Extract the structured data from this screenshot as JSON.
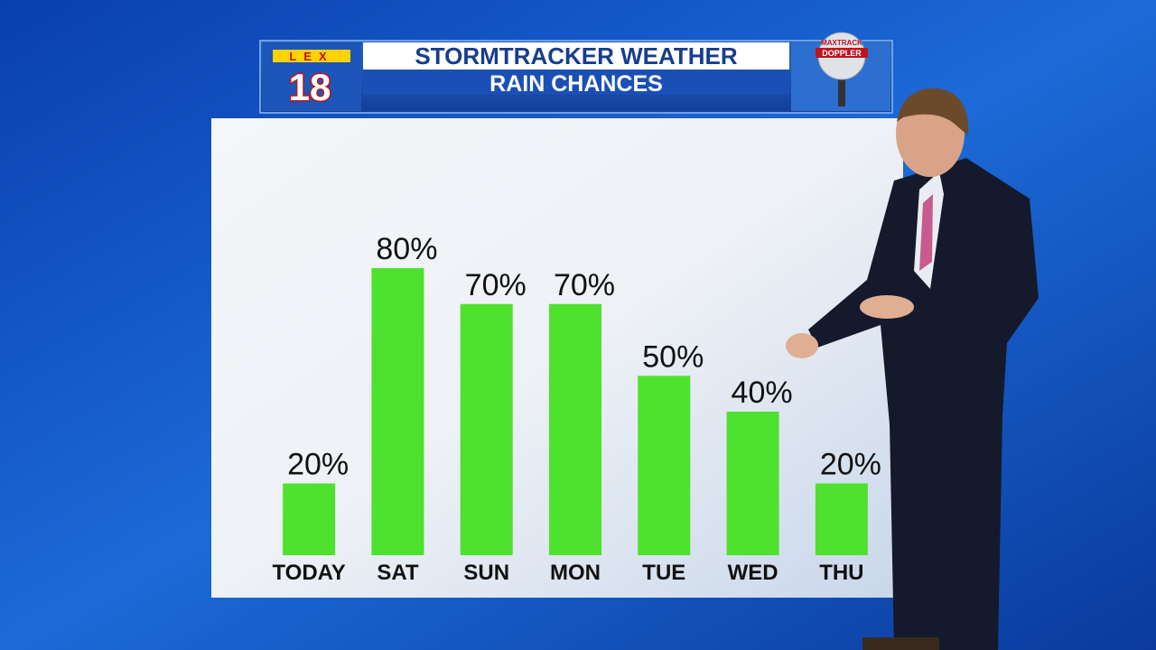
{
  "chart_data": {
    "type": "bar",
    "title": "STORMTRACKER WEATHER",
    "subtitle": "RAIN CHANCES",
    "categories": [
      "TODAY",
      "SAT",
      "SUN",
      "MON",
      "TUE",
      "WED",
      "THU"
    ],
    "values": [
      20,
      80,
      70,
      70,
      50,
      40,
      20
    ],
    "value_labels": [
      "20%",
      "80%",
      "70%",
      "70%",
      "50%",
      "40%",
      "20%"
    ],
    "color": "#4ee12e",
    "ylim": [
      0,
      100
    ]
  },
  "station_logo": {
    "top": "LEX",
    "number": "18"
  },
  "radar_logo": {
    "top": "MAXTRACK",
    "bottom": "DOPPLER"
  }
}
